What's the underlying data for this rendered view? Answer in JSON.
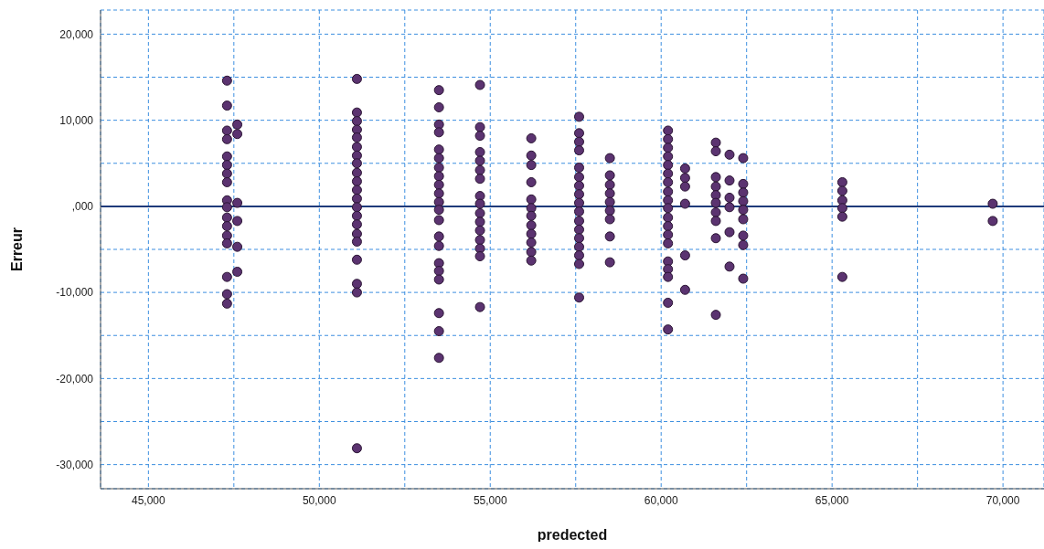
{
  "chart_data": {
    "type": "scatter",
    "xlabel": "predected",
    "ylabel": "Erreur",
    "xlim": [
      43600,
      71200
    ],
    "ylim": [
      -32800,
      22800
    ],
    "xticks": [
      {
        "value": 45000,
        "label": "45,000"
      },
      {
        "value": 47500,
        "label": null
      },
      {
        "value": 50000,
        "label": "50,000"
      },
      {
        "value": 52500,
        "label": null
      },
      {
        "value": 55000,
        "label": "55,000"
      },
      {
        "value": 57500,
        "label": null
      },
      {
        "value": 60000,
        "label": "60,000"
      },
      {
        "value": 62500,
        "label": null
      },
      {
        "value": 65000,
        "label": "65,000"
      },
      {
        "value": 67500,
        "label": null
      },
      {
        "value": 70000,
        "label": "70,000"
      }
    ],
    "yticks": [
      {
        "value": -30000,
        "label": "-30,000"
      },
      {
        "value": -25000,
        "label": null
      },
      {
        "value": -20000,
        "label": "-20,000"
      },
      {
        "value": -15000,
        "label": null
      },
      {
        "value": -10000,
        "label": "-10,000"
      },
      {
        "value": -5000,
        "label": null
      },
      {
        "value": 0,
        "label": ",000"
      },
      {
        "value": 5000,
        "label": null
      },
      {
        "value": 10000,
        "label": "10,000"
      },
      {
        "value": 15000,
        "label": null
      },
      {
        "value": 20000,
        "label": "20,000"
      }
    ],
    "grid": true,
    "legend": false,
    "marker": "circle",
    "ref_lines": [
      {
        "axis": "y",
        "value": 0,
        "color": "#1f3a7a",
        "line_style": "solid"
      }
    ],
    "series": [
      {
        "color": "#5b3370",
        "x": [
          47300,
          47300,
          47300,
          47300,
          47300,
          47300,
          47300,
          47300,
          47300,
          47300,
          47300,
          47300,
          47300,
          47300,
          47300,
          47300,
          47300,
          47600,
          47600,
          47600,
          47600,
          47600,
          47600,
          51100,
          51100,
          51100,
          51100,
          51100,
          51100,
          51100,
          51100,
          51100,
          51100,
          51100,
          51100,
          51100,
          51100,
          51100,
          51100,
          51100,
          51100,
          51100,
          51100,
          51100,
          53500,
          53500,
          53500,
          53500,
          53500,
          53500,
          53500,
          53500,
          53500,
          53500,
          53500,
          53500,
          53500,
          53500,
          53500,
          53500,
          53500,
          53500,
          53500,
          53500,
          53500,
          54700,
          54700,
          54700,
          54700,
          54700,
          54700,
          54700,
          54700,
          54700,
          54700,
          54700,
          54700,
          54700,
          54700,
          54700,
          54700,
          56200,
          56200,
          56200,
          56200,
          56200,
          56200,
          56200,
          56200,
          56200,
          56200,
          56200,
          56200,
          57600,
          57600,
          57600,
          57600,
          57600,
          57600,
          57600,
          57600,
          57600,
          57600,
          57600,
          57600,
          57600,
          57600,
          57600,
          57600,
          57600,
          58500,
          58500,
          58500,
          58500,
          58500,
          58500,
          58500,
          58500,
          58500,
          60200,
          60200,
          60200,
          60200,
          60200,
          60200,
          60200,
          60200,
          60200,
          60200,
          60200,
          60200,
          60200,
          60200,
          60200,
          60200,
          60200,
          60200,
          60200,
          60700,
          60700,
          60700,
          60700,
          60700,
          60700,
          61600,
          61600,
          61600,
          61600,
          61600,
          61600,
          61600,
          61600,
          61600,
          61600,
          62000,
          62000,
          62000,
          62000,
          62000,
          62000,
          62400,
          62400,
          62400,
          62400,
          62400,
          62400,
          62400,
          62400,
          62400,
          65300,
          65300,
          65300,
          65300,
          65300,
          65300,
          69700,
          69700
        ],
        "values": [
          14600,
          11700,
          8800,
          7800,
          5800,
          4800,
          3800,
          2800,
          700,
          -100,
          -1300,
          -2300,
          -3400,
          -4300,
          -8200,
          -10200,
          -11300,
          9500,
          8400,
          400,
          -1700,
          -4700,
          -7600,
          14800,
          10900,
          9900,
          8900,
          8000,
          6900,
          5900,
          5000,
          3900,
          2900,
          1900,
          900,
          -100,
          -1100,
          -2100,
          -3200,
          -4100,
          -6200,
          -9000,
          -10000,
          -28100,
          13500,
          11500,
          9500,
          8600,
          6600,
          5600,
          4500,
          3500,
          2500,
          1500,
          500,
          -400,
          -1600,
          -3500,
          -4600,
          -6600,
          -7500,
          -8500,
          -12400,
          -14500,
          -17600,
          14100,
          9200,
          8200,
          6300,
          5300,
          4200,
          3200,
          1200,
          300,
          -800,
          -1800,
          -2800,
          -3900,
          -4900,
          -5800,
          -11700,
          7900,
          5900,
          4800,
          2800,
          800,
          -200,
          -1100,
          -2200,
          -3200,
          -4200,
          -5300,
          -6300,
          10400,
          8500,
          7500,
          6500,
          4500,
          3400,
          2400,
          1400,
          400,
          -600,
          -1700,
          -2700,
          -3700,
          -4700,
          -5700,
          -6700,
          -10600,
          5600,
          3600,
          2500,
          1500,
          500,
          -500,
          -1500,
          -3500,
          -6500,
          8800,
          7800,
          6800,
          5800,
          4800,
          3800,
          2800,
          1700,
          700,
          -200,
          -1300,
          -2300,
          -3300,
          -4300,
          -6400,
          -7300,
          -8200,
          -11200,
          -14300,
          4400,
          3300,
          2300,
          300,
          -5700,
          -9700,
          7400,
          6400,
          3400,
          2300,
          1300,
          400,
          -700,
          -1700,
          -3700,
          -12600,
          6000,
          3000,
          1000,
          -100,
          -3000,
          -7000,
          5600,
          2600,
          1600,
          600,
          -400,
          -1500,
          -3400,
          -4500,
          -8400,
          2800,
          1800,
          700,
          -200,
          -1200,
          -8200,
          300,
          -1700
        ]
      }
    ]
  }
}
